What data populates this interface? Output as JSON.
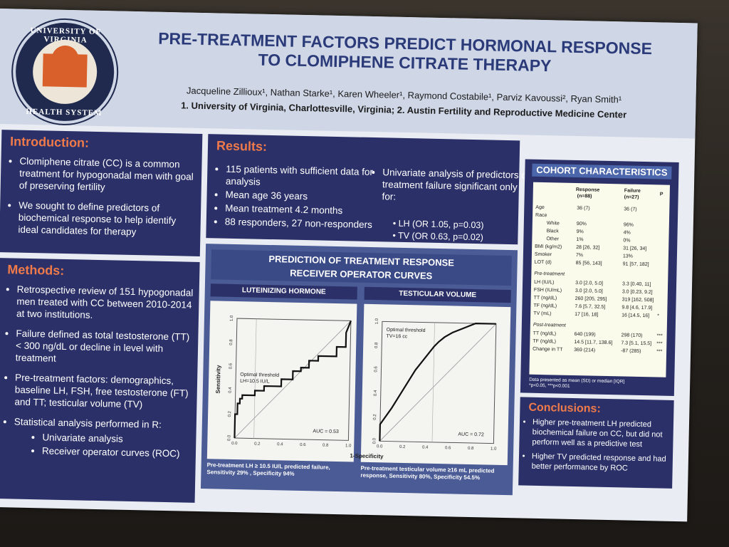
{
  "header": {
    "logo_top_text": "UNIVERSITY OF VIRGINIA",
    "logo_bottom_text": "HEALTH SYSTEM",
    "title_line1": "PRE-TREATMENT FACTORS PREDICT HORMONAL RESPONSE",
    "title_line2": "TO CLOMIPHENE CITRATE THERAPY",
    "authors": "Jacqueline Zillioux¹, Nathan Starke¹, Karen Wheeler¹, Raymond Costabile¹, Parviz Kavoussi², Ryan Smith¹",
    "affiliations": "1. University of Virginia, Charlottesville, Virginia; 2. Austin Fertility and Reproductive Medicine Center"
  },
  "introduction": {
    "heading": "Introduction:",
    "bullets": [
      "Clomiphene citrate (CC) is a common treatment for hypogonadal men with goal of preserving fertility",
      "We sought to define predictors of biochemical response to help identify ideal candidates for therapy"
    ]
  },
  "methods": {
    "heading": "Methods:",
    "bullets": [
      "Retrospective review of 151 hypogonadal men treated with CC between 2010-2014 at two institutions.",
      "Failure defined as total testosterone (TT) < 300 ng/dL or decline in level with treatment",
      "Pre-treatment factors: demographics, baseline LH, FSH, free testosterone (FT) and TT; testicular volume (TV)",
      "Statistical analysis performed in R:"
    ],
    "sub_bullets": [
      "Univariate analysis",
      "Receiver operator curves (ROC)"
    ]
  },
  "results": {
    "heading": "Results:",
    "left": [
      "115 patients with sufficient data for analysis",
      "Mean age 36 years",
      "Mean treatment 4.2 months",
      "88 responders, 27 non-responders"
    ],
    "right_intro": "Univariate analysis of predictors of treatment failure significant only for:",
    "right_items": [
      "LH  (OR 1.05, p=0.03)",
      "TV  (OR 0.63, p=0.02)"
    ]
  },
  "roc": {
    "heading_line1": "PREDICTION OF TREATMENT RESPONSE",
    "heading_line2": "RECEIVER OPERATOR CURVES",
    "lh_label": "LUTEINIZING HORMONE",
    "tv_label": "TESTICULAR VOLUME",
    "lh_threshold": "Optimal threshold",
    "lh_threshold_val": "LH=10.5 IU/L",
    "lh_auc": "AUC = 0.53",
    "tv_threshold": "Optimal threshold",
    "tv_threshold_val": "TV=16 cc",
    "tv_auc": "AUC = 0.72",
    "ylabel": "Sensitivity",
    "xlabel": "1-Specificity",
    "lh_caption": "Pre-treatment LH ≥ 10.5 IU/L predicted failure, Sensitivity 29% , Specificity 94%",
    "tv_caption": "Pre-treatment testicular volume ≥16 mL predicted response, Sensitivity 80%, Specificity 54.5%",
    "ticks": [
      "0.0",
      "0.2",
      "0.4",
      "0.6",
      "0.8",
      "1.0"
    ]
  },
  "chart_data": [
    {
      "type": "line",
      "title": "LUTEINIZING HORMONE",
      "xlabel": "1-Specificity",
      "ylabel": "Sensitivity",
      "xlim": [
        0,
        1
      ],
      "ylim": [
        0,
        1
      ],
      "series": [
        {
          "x": [
            0.0,
            0.0,
            0.02,
            0.02,
            0.04,
            0.04,
            0.06,
            0.06,
            0.17,
            0.17,
            0.25,
            0.25,
            0.4,
            0.4,
            0.5,
            0.5,
            0.57,
            0.57,
            0.64,
            0.64,
            0.72,
            0.72,
            0.88,
            0.88,
            0.96,
            0.96,
            1.0
          ],
          "y": [
            0.0,
            0.2,
            0.2,
            0.29,
            0.29,
            0.33,
            0.33,
            0.36,
            0.36,
            0.4,
            0.4,
            0.44,
            0.44,
            0.5,
            0.5,
            0.57,
            0.57,
            0.6,
            0.6,
            0.66,
            0.66,
            0.7,
            0.7,
            0.78,
            0.78,
            0.9,
            1.0
          ]
        }
      ],
      "annotations": [
        "Optimal threshold",
        "LH=10.5 IU/L",
        "AUC = 0.53"
      ]
    },
    {
      "type": "line",
      "title": "TESTICULAR VOLUME",
      "xlabel": "1-Specificity",
      "ylabel": "Sensitivity",
      "xlim": [
        0,
        1
      ],
      "ylim": [
        0,
        1
      ],
      "series": [
        {
          "x": [
            0.0,
            0.0,
            0.1,
            0.2,
            0.3,
            0.46,
            0.5,
            0.55,
            0.62,
            0.72,
            0.82,
            1.0
          ],
          "y": [
            0.0,
            0.14,
            0.28,
            0.44,
            0.6,
            0.8,
            0.84,
            0.88,
            0.92,
            0.96,
            1.0,
            1.0
          ]
        }
      ],
      "annotations": [
        "Optimal threshold",
        "TV=16 cc",
        "AUC = 0.72"
      ]
    }
  ],
  "cohort": {
    "heading": "COHORT CHARACTERISTICS",
    "col_response": "Response",
    "col_response_n": "(n=88)",
    "col_failure": "Failure",
    "col_failure_n": "(n=27)",
    "col_p": "P",
    "rows": [
      {
        "label": "Age",
        "r": "36 (7)",
        "f": "36 (7)",
        "p": ""
      },
      {
        "label": "Race",
        "r": "",
        "f": "",
        "p": ""
      },
      {
        "label": "White",
        "r": "90%",
        "f": "96%",
        "p": ""
      },
      {
        "label": "Black",
        "r": "9%",
        "f": "4%",
        "p": ""
      },
      {
        "label": "Other",
        "r": "1%",
        "f": "0%",
        "p": ""
      },
      {
        "label": "BMI (kg/m2)",
        "r": "28 [26, 32]",
        "f": "31 [26, 34]",
        "p": ""
      },
      {
        "label": "Smoker",
        "r": "7%",
        "f": "13%",
        "p": ""
      },
      {
        "label": "LOT (d)",
        "r": "85 [56, 143]",
        "f": "91 [57, 182]",
        "p": ""
      },
      {
        "label": "Pre-treatment",
        "r": "",
        "f": "",
        "p": ""
      },
      {
        "label": "LH (IU/L)",
        "r": "3.0 [2.0, 5.0]",
        "f": "3.3 [0.40, 11]",
        "p": ""
      },
      {
        "label": "FSH (IU/mL)",
        "r": "3.0 [2.0, 5.0]",
        "f": "3.0 [0.23, 9.2]",
        "p": ""
      },
      {
        "label": "TT (ng/dL)",
        "r": "260 [205, 295]",
        "f": "319 [162, 508]",
        "p": ""
      },
      {
        "label": "TF (ng/dL)",
        "r": "7.6 [5.7, 32.5]",
        "f": "9.8 [4.6, 17.9]",
        "p": ""
      },
      {
        "label": "TV (mL)",
        "r": "17 [16, 18]",
        "f": "16 [14.5, 16]",
        "p": "*"
      },
      {
        "label": "Post-treatment",
        "r": "",
        "f": "",
        "p": ""
      },
      {
        "label": "TT (ng/dL)",
        "r": "640 (199)",
        "f": "298 (170)",
        "p": "***"
      },
      {
        "label": "TF (ng/dL)",
        "r": "14.5 [11.7, 138.6]",
        "f": "7.3 [5.1, 15.5]",
        "p": "***"
      },
      {
        "label": "Change in TT",
        "r": "369 (214)",
        "f": "-87 (285)",
        "p": "***"
      }
    ],
    "note1": "Data presented as mean (SD) or median [IQR]",
    "note2": "*p<0.05, ***p<0.001"
  },
  "conclusions": {
    "heading": "Conclusions:",
    "bullets": [
      "Higher pre-treatment LH predicted biochemical failure on CC, but did not perform well as a predictive test",
      "Higher TV predicted response and had better performance by ROC"
    ]
  },
  "colors": {
    "panel": "#2b3168",
    "heading": "#f07a4a",
    "title": "#2b3a78"
  }
}
